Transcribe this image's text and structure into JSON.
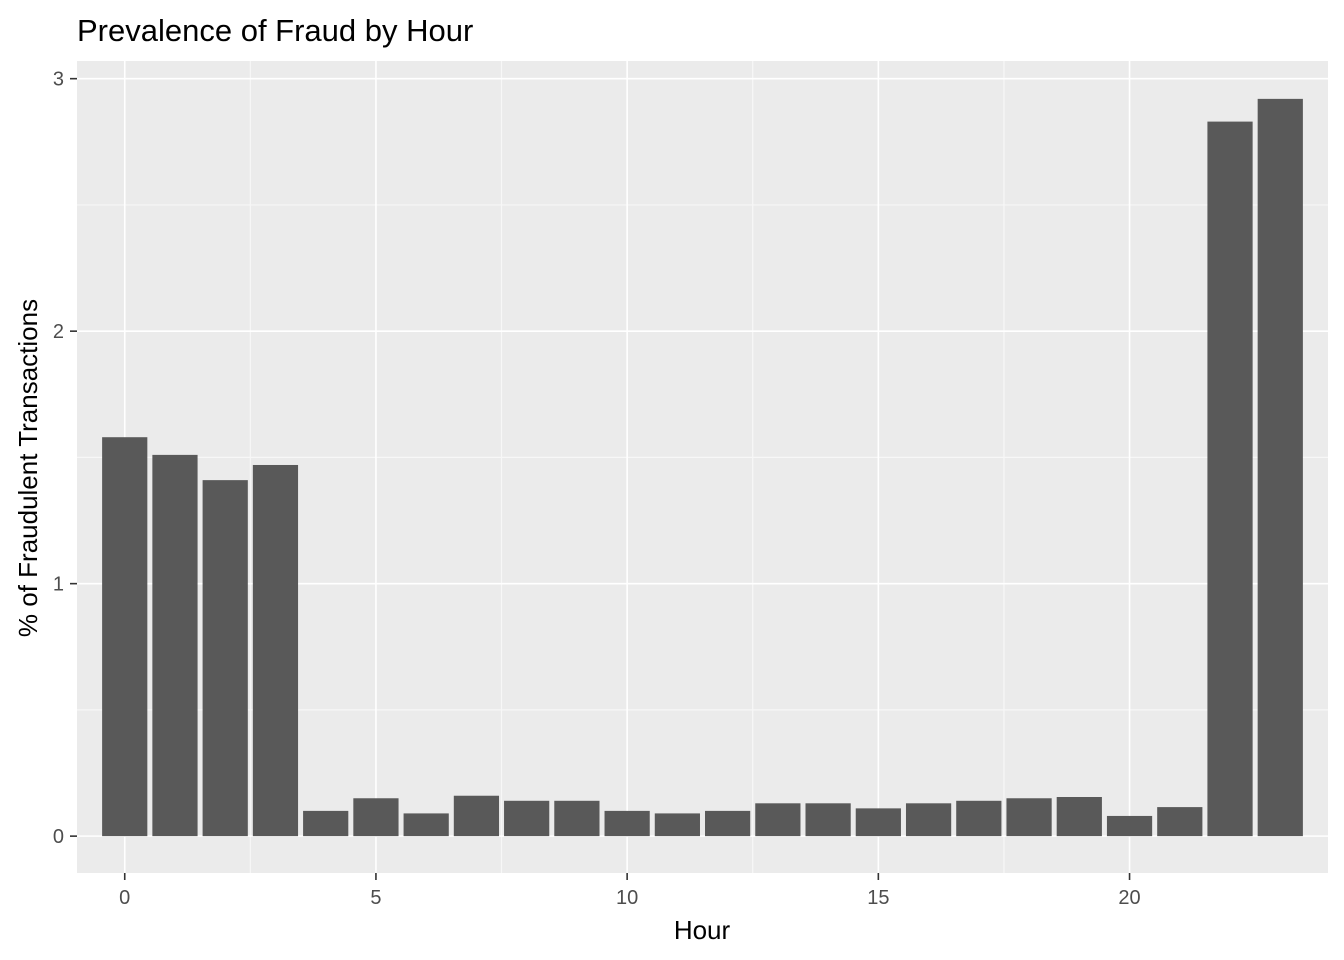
{
  "chart_data": {
    "type": "bar",
    "title": "Prevalence of Fraud by Hour",
    "xlabel": "Hour",
    "ylabel": "% of Fraudulent Transactions",
    "x": [
      0,
      1,
      2,
      3,
      4,
      5,
      6,
      7,
      8,
      9,
      10,
      11,
      12,
      13,
      14,
      15,
      16,
      17,
      18,
      19,
      20,
      21,
      22,
      23
    ],
    "values": [
      1.58,
      1.51,
      1.41,
      1.47,
      0.1,
      0.15,
      0.09,
      0.16,
      0.14,
      0.14,
      0.1,
      0.09,
      0.1,
      0.13,
      0.13,
      0.11,
      0.13,
      0.14,
      0.15,
      0.155,
      0.08,
      0.115,
      2.83,
      2.92
    ],
    "xticks": [
      "0",
      "5",
      "10",
      "15",
      "20"
    ],
    "yticks": [
      "0",
      "1",
      "2",
      "3"
    ],
    "xlim": [
      -0.95,
      23.95
    ],
    "ylim": [
      -0.146,
      3.07
    ],
    "grid": true,
    "colors": {
      "bar": "#595959",
      "panel": "#ebebeb",
      "grid_major": "#ffffff",
      "grid_minor": "#f7f7f7",
      "tick": "#333333"
    }
  }
}
